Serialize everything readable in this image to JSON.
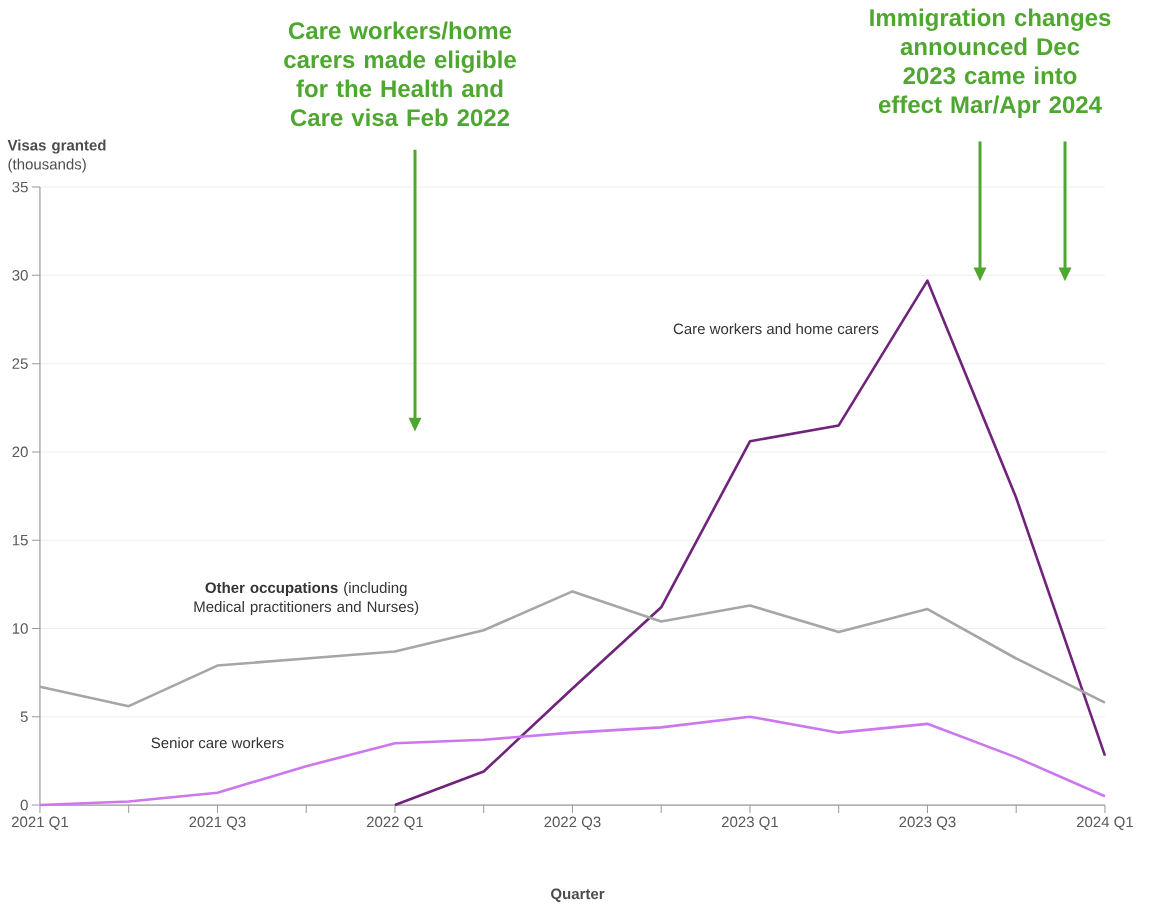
{
  "chart_data": {
    "type": "line",
    "ylabel": "**Visas granted** (thousands)",
    "xlabel": "Quarter",
    "categories": [
      "2021 Q1",
      null,
      "2021 Q3",
      null,
      "2022 Q1",
      null,
      "2022 Q3",
      null,
      "2023 Q1",
      null,
      "2023 Q3",
      null,
      "2024 Q1"
    ],
    "series": [
      {
        "name": "Care workers and home carers",
        "color": "#70237a",
        "values": [
          null,
          null,
          null,
          null,
          0,
          1.9,
          6.6,
          11.2,
          20.6,
          21.5,
          29.7,
          17.4,
          2.8
        ]
      },
      {
        "name": "**Other occupations** (including Medical practitioners and Nurses)",
        "color": "#a6a6a6",
        "values": [
          6.7,
          5.6,
          7.9,
          8.3,
          8.7,
          9.9,
          12.1,
          10.4,
          11.3,
          9.8,
          11.1,
          8.3,
          5.8
        ]
      },
      {
        "name": "Senior care workers",
        "color": "#cc77ee",
        "values": [
          0,
          0.2,
          0.7,
          2.2,
          3.5,
          3.7,
          4.1,
          4.4,
          5.0,
          4.1,
          4.6,
          2.7,
          0.5
        ]
      }
    ],
    "ylim": [
      0,
      35
    ],
    "yticks": [
      0,
      5,
      10,
      15,
      20,
      25,
      30,
      35
    ],
    "grid": "y",
    "marker": "none",
    "line_style": "solid",
    "annotations": [
      "Care workers/home carers made eligible for the Health and Care visa Feb 2022",
      "Immigration changes announced Dec 2023 came into effect Mar/Apr 2024"
    ]
  }
}
